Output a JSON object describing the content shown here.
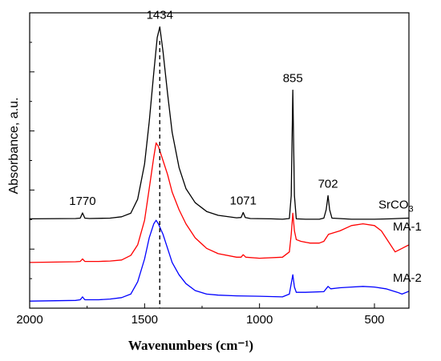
{
  "chart_data": {
    "type": "line",
    "xlabel": "Wavenumbers (cm⁻¹)",
    "ylabel": "Absorbance, a.u.",
    "xlim": [
      2000,
      350
    ],
    "x_reversed": true,
    "xticks": [
      2000,
      1500,
      1000,
      500
    ],
    "y_tick_labels": "none",
    "grid": false,
    "legend": "none",
    "series": [
      {
        "name": "SrCO3",
        "color": "#000000",
        "points": [
          [
            2000,
            2.54
          ],
          [
            1800,
            2.55
          ],
          [
            1780,
            2.56
          ],
          [
            1770,
            2.71
          ],
          [
            1760,
            2.56
          ],
          [
            1740,
            2.55
          ],
          [
            1650,
            2.56
          ],
          [
            1600,
            2.6
          ],
          [
            1560,
            2.7
          ],
          [
            1530,
            3.1
          ],
          [
            1500,
            4.1
          ],
          [
            1480,
            5.3
          ],
          [
            1460,
            6.7
          ],
          [
            1445,
            7.7
          ],
          [
            1434,
            8.0
          ],
          [
            1420,
            7.3
          ],
          [
            1400,
            6.1
          ],
          [
            1380,
            5.0
          ],
          [
            1350,
            4.0
          ],
          [
            1320,
            3.4
          ],
          [
            1280,
            3.0
          ],
          [
            1230,
            2.75
          ],
          [
            1180,
            2.64
          ],
          [
            1100,
            2.57
          ],
          [
            1080,
            2.58
          ],
          [
            1071,
            2.72
          ],
          [
            1062,
            2.58
          ],
          [
            1040,
            2.55
          ],
          [
            950,
            2.54
          ],
          [
            900,
            2.53
          ],
          [
            870,
            2.55
          ],
          [
            862,
            3.2
          ],
          [
            855,
            6.2
          ],
          [
            848,
            3.2
          ],
          [
            840,
            2.54
          ],
          [
            800,
            2.53
          ],
          [
            740,
            2.53
          ],
          [
            720,
            2.56
          ],
          [
            710,
            2.8
          ],
          [
            702,
            3.2
          ],
          [
            695,
            2.8
          ],
          [
            685,
            2.56
          ],
          [
            600,
            2.53
          ],
          [
            500,
            2.53
          ],
          [
            430,
            2.54
          ],
          [
            400,
            2.55
          ],
          [
            350,
            2.56
          ]
        ]
      },
      {
        "name": "MA-1",
        "color": "#ff0000",
        "points": [
          [
            2000,
            1.3
          ],
          [
            1800,
            1.32
          ],
          [
            1780,
            1.33
          ],
          [
            1770,
            1.4
          ],
          [
            1760,
            1.33
          ],
          [
            1700,
            1.33
          ],
          [
            1650,
            1.34
          ],
          [
            1600,
            1.37
          ],
          [
            1560,
            1.5
          ],
          [
            1530,
            1.8
          ],
          [
            1500,
            2.5
          ],
          [
            1480,
            3.4
          ],
          [
            1460,
            4.3
          ],
          [
            1450,
            4.7
          ],
          [
            1440,
            4.6
          ],
          [
            1420,
            4.2
          ],
          [
            1400,
            3.8
          ],
          [
            1380,
            3.3
          ],
          [
            1350,
            2.8
          ],
          [
            1320,
            2.4
          ],
          [
            1280,
            2.0
          ],
          [
            1230,
            1.7
          ],
          [
            1180,
            1.55
          ],
          [
            1100,
            1.45
          ],
          [
            1080,
            1.45
          ],
          [
            1071,
            1.52
          ],
          [
            1060,
            1.45
          ],
          [
            1000,
            1.42
          ],
          [
            900,
            1.45
          ],
          [
            870,
            1.6
          ],
          [
            862,
            2.1
          ],
          [
            855,
            2.7
          ],
          [
            848,
            2.2
          ],
          [
            840,
            1.95
          ],
          [
            820,
            1.9
          ],
          [
            780,
            1.85
          ],
          [
            740,
            1.85
          ],
          [
            720,
            1.9
          ],
          [
            710,
            2.0
          ],
          [
            700,
            2.1
          ],
          [
            650,
            2.2
          ],
          [
            600,
            2.35
          ],
          [
            550,
            2.4
          ],
          [
            500,
            2.35
          ],
          [
            470,
            2.2
          ],
          [
            440,
            1.9
          ],
          [
            410,
            1.6
          ],
          [
            380,
            1.7
          ],
          [
            350,
            1.8
          ]
        ]
      },
      {
        "name": "MA-2",
        "color": "#0000ff",
        "points": [
          [
            2000,
            0.2
          ],
          [
            1800,
            0.22
          ],
          [
            1780,
            0.24
          ],
          [
            1770,
            0.32
          ],
          [
            1760,
            0.24
          ],
          [
            1700,
            0.24
          ],
          [
            1650,
            0.26
          ],
          [
            1600,
            0.3
          ],
          [
            1560,
            0.4
          ],
          [
            1530,
            0.75
          ],
          [
            1500,
            1.4
          ],
          [
            1480,
            2.0
          ],
          [
            1460,
            2.4
          ],
          [
            1450,
            2.5
          ],
          [
            1440,
            2.4
          ],
          [
            1420,
            2.1
          ],
          [
            1400,
            1.7
          ],
          [
            1380,
            1.3
          ],
          [
            1350,
            0.95
          ],
          [
            1320,
            0.7
          ],
          [
            1280,
            0.5
          ],
          [
            1230,
            0.4
          ],
          [
            1180,
            0.37
          ],
          [
            1100,
            0.35
          ],
          [
            1000,
            0.34
          ],
          [
            950,
            0.33
          ],
          [
            900,
            0.32
          ],
          [
            870,
            0.4
          ],
          [
            862,
            0.7
          ],
          [
            855,
            0.95
          ],
          [
            848,
            0.6
          ],
          [
            840,
            0.45
          ],
          [
            800,
            0.45
          ],
          [
            720,
            0.47
          ],
          [
            702,
            0.62
          ],
          [
            690,
            0.55
          ],
          [
            650,
            0.58
          ],
          [
            600,
            0.6
          ],
          [
            550,
            0.62
          ],
          [
            500,
            0.6
          ],
          [
            450,
            0.55
          ],
          [
            400,
            0.45
          ],
          [
            380,
            0.4
          ],
          [
            350,
            0.48
          ]
        ]
      }
    ],
    "peak_labels": [
      {
        "text": "1434",
        "x": 1434,
        "y": 8.0
      },
      {
        "text": "855",
        "x": 855,
        "y": 6.2
      },
      {
        "text": "1770",
        "x": 1770,
        "y": 2.71
      },
      {
        "text": "1071",
        "x": 1071,
        "y": 2.72
      },
      {
        "text": "702",
        "x": 702,
        "y": 3.2
      }
    ],
    "reference_line": {
      "x": 1434,
      "style": "dashed"
    }
  }
}
